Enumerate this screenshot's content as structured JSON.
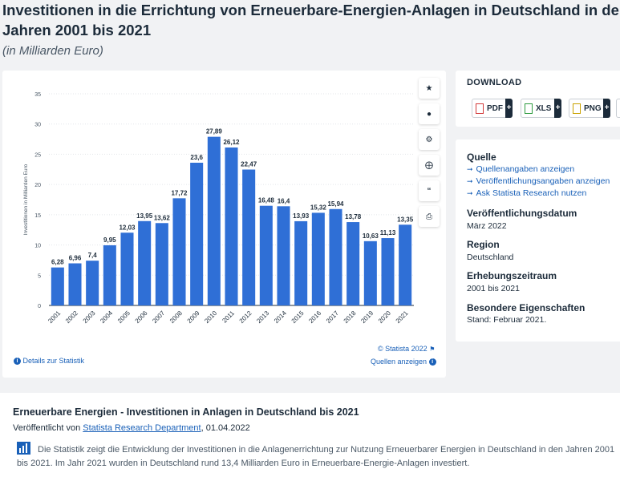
{
  "page": {
    "title_line1": "Investitionen in die Errichtung von Erneuerbare-Energien-Anlagen in Deutschland in den",
    "title_line2": "Jahren 2001 bis 2021",
    "subtitle": "(in Milliarden Euro)"
  },
  "chart_data": {
    "type": "bar",
    "categories": [
      "2001",
      "2002",
      "2003",
      "2004",
      "2005",
      "2006",
      "2007",
      "2008",
      "2009",
      "2010",
      "2011",
      "2012",
      "2013",
      "2014",
      "2015",
      "2016",
      "2017",
      "2018",
      "2019",
      "2020",
      "2021"
    ],
    "values": [
      6.28,
      6.96,
      7.4,
      9.95,
      12.03,
      13.95,
      13.62,
      17.72,
      23.6,
      27.89,
      26.12,
      22.47,
      16.48,
      16.4,
      13.93,
      15.32,
      15.94,
      13.78,
      10.63,
      11.13,
      13.35
    ],
    "value_labels": [
      "6,28",
      "6,96",
      "7,4",
      "9,95",
      "12,03",
      "13,95",
      "13,62",
      "17,72",
      "23,6",
      "27,89",
      "26,12",
      "22,47",
      "16,48",
      "16,4",
      "13,93",
      "15,32",
      "15,94",
      "13,78",
      "10,63",
      "11,13",
      "13,35"
    ],
    "ylabel": "Investitionen in Milliarden Euro",
    "ylim": [
      0,
      35
    ],
    "yticks": [
      0,
      5,
      10,
      15,
      20,
      25,
      30,
      35
    ],
    "grid": true,
    "bar_color": "#2f6fd6"
  },
  "chart_footer": {
    "copyright": "© Statista 2022",
    "details": "Details zur Statistik",
    "sources": "Quellen anzeigen"
  },
  "toolbar": {
    "icons": [
      "star-icon",
      "bell-icon",
      "gear-icon",
      "share-icon",
      "quote-icon",
      "print-icon"
    ]
  },
  "download": {
    "heading": "DOWNLOAD",
    "buttons": [
      "PDF",
      "XLS",
      "PNG"
    ],
    "plus": "+"
  },
  "meta": {
    "source_heading": "Quelle",
    "source_links": [
      "Quellenangaben anzeigen",
      "Veröffentlichungsangaben anzeigen",
      "Ask Statista Research nutzen"
    ],
    "pubdate_heading": "Veröffentlichungsdatum",
    "pubdate": "März 2022",
    "region_heading": "Region",
    "region": "Deutschland",
    "period_heading": "Erhebungszeitraum",
    "period": "2001 bis 2021",
    "special_heading": "Besondere Eigenschaften",
    "special": "Stand: Februar 2021."
  },
  "description": {
    "title": "Erneuerbare Energien - Investitionen in Anlagen in Deutschland bis 2021",
    "published_prefix": "Veröffentlicht von ",
    "publisher": "Statista Research Department",
    "published_date": ", 01.04.2022",
    "text": "Die Statistik zeigt die Entwicklung der Investitionen in die Anlagenerrichtung zur Nutzung Erneuerbarer Energien in Deutschland in den Jahren 2001 bis 2021. Im Jahr 2021 wurden in Deutschland rund 13,4 Milliarden Euro in Erneuerbare-Energie-Anlagen investiert."
  }
}
